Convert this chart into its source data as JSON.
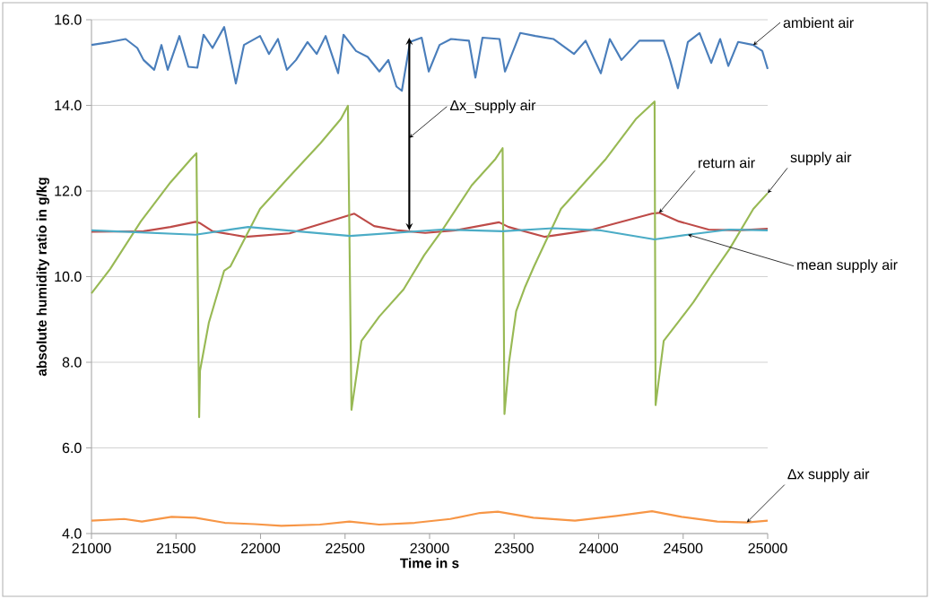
{
  "chart_data": {
    "type": "line",
    "xlabel": "Time in s",
    "ylabel": "absolute humidity ratio in g/kg",
    "grid": "y",
    "xlim": [
      21000,
      25000
    ],
    "xticks": [
      21000,
      21500,
      22000,
      22500,
      23000,
      23500,
      24000,
      24500,
      25000
    ],
    "ylim": [
      4,
      16
    ],
    "yticks": [
      {
        "value": 4,
        "label": "4.0"
      },
      {
        "value": 6,
        "label": "6.0"
      },
      {
        "value": 8,
        "label": "8.0"
      },
      {
        "value": 10,
        "label": "10.0"
      },
      {
        "value": 12,
        "label": "12.0"
      },
      {
        "value": 14,
        "label": "14.0"
      },
      {
        "value": 16,
        "label": "16.0"
      }
    ],
    "series": [
      {
        "name": "ambient air",
        "color": "#4a7ebb",
        "x": [
          21000,
          21111,
          21202,
          21271,
          21308,
          21371,
          21414,
          21451,
          21520,
          21573,
          21626,
          21663,
          21716,
          21785,
          21854,
          21902,
          21997,
          22050,
          22103,
          22156,
          22210,
          22278,
          22332,
          22385,
          22459,
          22491,
          22565,
          22634,
          22703,
          22756,
          22804,
          22836,
          22884,
          22953,
          22995,
          23059,
          23127,
          23233,
          23271,
          23313,
          23414,
          23446,
          23536,
          23626,
          23732,
          23854,
          23923,
          24013,
          24066,
          24135,
          24241,
          24385,
          24422,
          24469,
          24528,
          24597,
          24666,
          24719,
          24767,
          24825,
          24915,
          24968,
          25000
        ],
        "values": [
          15.41,
          15.48,
          15.55,
          15.34,
          15.06,
          14.83,
          15.41,
          14.83,
          15.62,
          14.9,
          14.88,
          15.65,
          15.34,
          15.83,
          14.51,
          15.41,
          15.62,
          15.2,
          15.55,
          14.83,
          15.06,
          15.48,
          15.2,
          15.62,
          14.75,
          15.65,
          15.27,
          15.13,
          14.79,
          15.06,
          14.44,
          14.34,
          15.48,
          15.58,
          14.79,
          15.41,
          15.55,
          15.51,
          14.65,
          15.58,
          15.55,
          14.79,
          15.69,
          15.62,
          15.55,
          15.2,
          15.51,
          14.75,
          15.55,
          15.06,
          15.51,
          15.51,
          15.06,
          14.4,
          15.48,
          15.69,
          14.99,
          15.55,
          14.92,
          15.48,
          15.41,
          15.27,
          14.85
        ]
      },
      {
        "name": "return air",
        "color": "#be4b48",
        "x": [
          21000,
          21308,
          21467,
          21616,
          21642,
          21716,
          21910,
          22172,
          22438,
          22555,
          22672,
          22815,
          22974,
          23153,
          23411,
          23467,
          23679,
          23944,
          24315,
          24358,
          24475,
          24650,
          24825,
          25000
        ],
        "values": [
          11.05,
          11.06,
          11.16,
          11.28,
          11.25,
          11.06,
          10.93,
          11.01,
          11.33,
          11.47,
          11.18,
          11.08,
          11.02,
          11.08,
          11.27,
          11.16,
          10.93,
          11.08,
          11.47,
          11.49,
          11.29,
          11.1,
          11.08,
          11.12
        ]
      },
      {
        "name": "supply air",
        "color": "#98b954",
        "x": [
          21000,
          21111,
          21292,
          21467,
          21589,
          21621,
          21637,
          21642,
          21694,
          21785,
          21822,
          21997,
          22172,
          22353,
          22475,
          22517,
          22538,
          22597,
          22703,
          22846,
          22968,
          23074,
          23249,
          23390,
          23432,
          23443,
          23470,
          23512,
          23565,
          23618,
          23777,
          24043,
          24220,
          24331,
          24337,
          24385,
          24475,
          24560,
          24666,
          24772,
          24915,
          25000
        ],
        "values": [
          9.61,
          10.18,
          11.29,
          12.2,
          12.75,
          12.88,
          6.72,
          7.8,
          8.92,
          10.14,
          10.24,
          11.58,
          12.34,
          13.11,
          13.68,
          13.99,
          6.89,
          8.5,
          9.07,
          9.7,
          10.5,
          11.08,
          12.13,
          12.75,
          13.0,
          6.79,
          8.0,
          9.19,
          9.76,
          10.24,
          11.58,
          12.75,
          13.68,
          14.09,
          7.0,
          8.5,
          8.96,
          9.4,
          10.03,
          10.63,
          11.58,
          11.95
        ]
      },
      {
        "name": "mean supply air",
        "color": "#4bacc6",
        "x": [
          21000,
          21616,
          21927,
          22530,
          23074,
          23430,
          23732,
          24013,
          24331,
          24528,
          24772,
          25000
        ],
        "values": [
          11.08,
          10.98,
          11.16,
          10.95,
          11.1,
          11.06,
          11.13,
          11.08,
          10.87,
          10.98,
          11.1,
          11.08
        ]
      },
      {
        "name": "Δx supply air",
        "color": "#f79646",
        "x": [
          21000,
          21193,
          21298,
          21474,
          21614,
          21789,
          21965,
          22123,
          22351,
          22526,
          22702,
          22912,
          23123,
          23298,
          23404,
          23614,
          23860,
          24105,
          24316,
          24491,
          24702,
          24877,
          25000
        ],
        "values": [
          4.3,
          4.34,
          4.28,
          4.39,
          4.37,
          4.25,
          4.22,
          4.18,
          4.21,
          4.28,
          4.21,
          4.25,
          4.34,
          4.48,
          4.51,
          4.37,
          4.3,
          4.41,
          4.52,
          4.39,
          4.28,
          4.26,
          4.3
        ]
      }
    ],
    "annotations": [
      "Δx_supply air"
    ]
  }
}
